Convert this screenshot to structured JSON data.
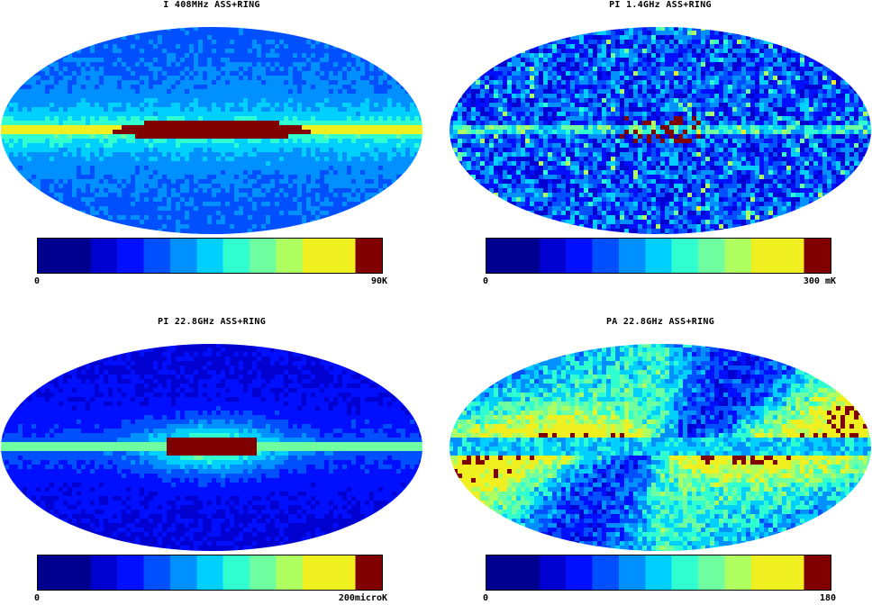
{
  "colorbar_stops": [
    "#00008f",
    "#0000d0",
    "#0010ff",
    "#0050ff",
    "#0090ff",
    "#00d0ff",
    "#30ffd0",
    "#70ffa0",
    "#b0ff60",
    "#f0f020",
    "#f0f020",
    "#800000"
  ],
  "panels": [
    {
      "title": "I 408MHz ASS+RING",
      "min_label": "0",
      "max_label": "90K",
      "pattern": "disk-strong"
    },
    {
      "title": "PI 1.4GHz ASS+RING",
      "min_label": "0",
      "max_label": "300 mK",
      "pattern": "noisy"
    },
    {
      "title": "PI 22.8GHz ASS+RING",
      "min_label": "0",
      "max_label": "200microK",
      "pattern": "center-blob"
    },
    {
      "title": "PA 22.8GHz ASS+RING",
      "min_label": "0",
      "max_label": "180",
      "pattern": "angle"
    }
  ]
}
